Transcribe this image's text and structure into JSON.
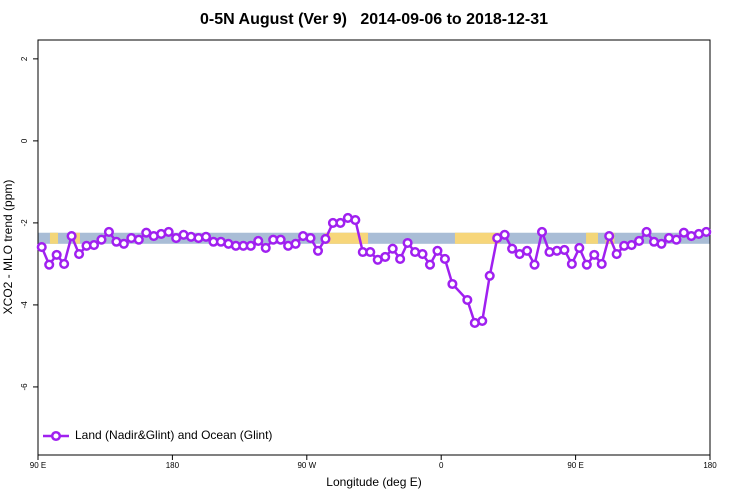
{
  "chart_data": {
    "type": "line",
    "title": "0-5N August (Ver 9)   2014-09-06 to 2018-12-31",
    "x_label": "Longitude (deg E)",
    "y_label": "XCO2 - MLO trend (ppm)",
    "xlim": [
      90,
      540
    ],
    "ylim": [
      -7.66,
      2.46
    ],
    "xticks": [
      {
        "value": 90,
        "label": "90 E"
      },
      180,
      {
        "value": 270,
        "label": "90 W"
      },
      {
        "value": 360,
        "label": "0"
      },
      {
        "value": 450,
        "label": "90 E"
      },
      {
        "value": 540,
        "label": "180"
      }
    ],
    "yticks": [
      2,
      0,
      -2,
      -4,
      -6
    ],
    "legend": "bottom-left",
    "band": {
      "ylim": [
        -2.51,
        -2.24
      ],
      "color": "#a9bdd6",
      "segments": [
        {
          "x": [
            98,
            103.4
          ],
          "color": "#f3d679"
        },
        {
          "x": [
            114.8,
            118.1
          ],
          "color": "#f3d679"
        },
        {
          "x": [
            282.2,
            311
          ],
          "color": "#f7d67a"
        },
        {
          "x": [
            369.2,
            399.4
          ],
          "color": "#f7d67a"
        },
        {
          "x": [
            457,
            465
          ],
          "color": "#f3d679"
        },
        {
          "x": [
            470,
            476
          ],
          "color": "#f3d679"
        }
      ]
    },
    "series": [
      {
        "name": "Land (Nadir&Glint) and Ocean (Glint)",
        "color": "#a020f0",
        "x": [
          92.5,
          97.5,
          102.5,
          107.5,
          112.5,
          117.5,
          122.5,
          127.5,
          132.5,
          137.5,
          142.5,
          147.5,
          152.5,
          157.5,
          162.5,
          167.5,
          172.5,
          177.5,
          182.5,
          187.5,
          192.5,
          197.5,
          202.5,
          207.5,
          212.5,
          217.5,
          222.5,
          227.5,
          232.5,
          237.5,
          242.5,
          247.5,
          252.5,
          257.5,
          262.5,
          267.5,
          272.5,
          277.5,
          282.5,
          287.5,
          292.5,
          297.5,
          302.5,
          307.5,
          312.5,
          317.5,
          322.5,
          327.5,
          332.5,
          337.5,
          342.5,
          347.5,
          352.5,
          357.5,
          362.5,
          367.5,
          377.5,
          382.5,
          387.5,
          392.5,
          397.5,
          402.5,
          407.5,
          412.5,
          417.5,
          422.5,
          427.5,
          432.5,
          437.5,
          442.5,
          447.5,
          452.5,
          457.5,
          462.5,
          467.5,
          472.5,
          477.5,
          482.5,
          487.5,
          492.5,
          497.5,
          502.5,
          507.5,
          512.5,
          517.5,
          522.5,
          527.5,
          532.5,
          537.5
        ],
        "values": [
          -2.59,
          -3.02,
          -2.78,
          -3.0,
          -2.32,
          -2.76,
          -2.56,
          -2.54,
          -2.41,
          -2.22,
          -2.46,
          -2.51,
          -2.37,
          -2.41,
          -2.24,
          -2.32,
          -2.27,
          -2.22,
          -2.37,
          -2.29,
          -2.34,
          -2.37,
          -2.34,
          -2.46,
          -2.46,
          -2.51,
          -2.56,
          -2.56,
          -2.56,
          -2.44,
          -2.61,
          -2.41,
          -2.41,
          -2.56,
          -2.51,
          -2.32,
          -2.37,
          -2.68,
          -2.39,
          -2.0,
          -2.0,
          -1.88,
          -1.93,
          -2.71,
          -2.71,
          -2.9,
          -2.83,
          -2.63,
          -2.88,
          -2.49,
          -2.71,
          -2.76,
          -3.02,
          -2.68,
          -2.88,
          -3.49,
          -3.88,
          -4.44,
          -4.39,
          -3.29,
          -2.37,
          -2.29,
          -2.63,
          -2.76,
          -2.68,
          -3.02,
          -2.22,
          -2.71,
          -2.68,
          -2.66,
          -3.0,
          -2.61,
          -3.02,
          -2.78,
          -3.0,
          -2.32,
          -2.76,
          -2.56,
          -2.54,
          -2.44,
          -2.22,
          -2.46,
          -2.51,
          -2.37,
          -2.41,
          -2.24,
          -2.32,
          -2.27,
          -2.22
        ]
      }
    ]
  }
}
